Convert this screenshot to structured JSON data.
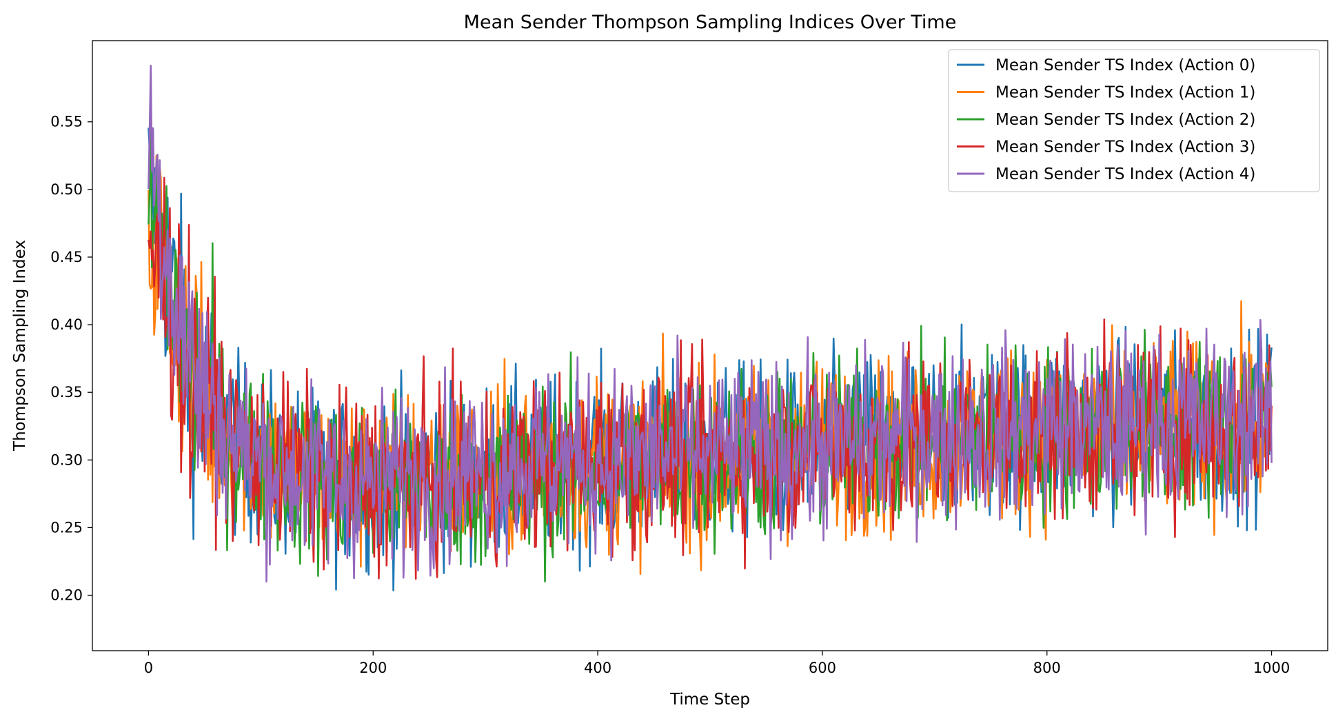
{
  "chart_data": {
    "type": "line",
    "title": "Mean Sender Thompson Sampling Indices Over Time",
    "xlabel": "Time Step",
    "ylabel": "Thompson Sampling Index",
    "xlim": [
      -50,
      1050
    ],
    "ylim": [
      0.159,
      0.61
    ],
    "xticks": [
      0,
      200,
      400,
      600,
      800,
      1000
    ],
    "yticks": [
      0.2,
      0.25,
      0.3,
      0.35,
      0.4,
      0.45,
      0.5,
      0.55
    ],
    "xtick_labels": [
      "0",
      "200",
      "400",
      "600",
      "800",
      "1000"
    ],
    "ytick_labels": [
      "0.20",
      "0.25",
      "0.30",
      "0.35",
      "0.40",
      "0.45",
      "0.50",
      "0.55"
    ],
    "grid": false,
    "legend_position": "top-right",
    "x": [
      0,
      10,
      20,
      30,
      40,
      50,
      60,
      80,
      100,
      130,
      160,
      200,
      250,
      300,
      350,
      400,
      450,
      500,
      550,
      600,
      650,
      700,
      750,
      800,
      850,
      900,
      950,
      1000
    ],
    "series": [
      {
        "name": "Mean Sender TS Index (Action 0)",
        "color": "#1f77b4",
        "values": [
          0.5,
          0.47,
          0.43,
          0.39,
          0.36,
          0.34,
          0.33,
          0.31,
          0.3,
          0.29,
          0.285,
          0.285,
          0.29,
          0.29,
          0.295,
          0.3,
          0.3,
          0.305,
          0.305,
          0.31,
          0.315,
          0.32,
          0.32,
          0.325,
          0.325,
          0.325,
          0.325,
          0.33
        ]
      },
      {
        "name": "Mean Sender TS Index (Action 1)",
        "color": "#ff7f0e",
        "values": [
          0.47,
          0.46,
          0.42,
          0.39,
          0.36,
          0.34,
          0.33,
          0.31,
          0.3,
          0.29,
          0.285,
          0.285,
          0.29,
          0.29,
          0.295,
          0.3,
          0.3,
          0.3,
          0.305,
          0.31,
          0.31,
          0.315,
          0.32,
          0.32,
          0.32,
          0.325,
          0.325,
          0.33
        ]
      },
      {
        "name": "Mean Sender TS Index (Action 2)",
        "color": "#2ca02c",
        "values": [
          0.49,
          0.47,
          0.43,
          0.39,
          0.36,
          0.34,
          0.33,
          0.31,
          0.3,
          0.29,
          0.28,
          0.28,
          0.285,
          0.285,
          0.29,
          0.295,
          0.3,
          0.3,
          0.305,
          0.31,
          0.315,
          0.315,
          0.32,
          0.32,
          0.325,
          0.325,
          0.325,
          0.33
        ]
      },
      {
        "name": "Mean Sender TS Index (Action 3)",
        "color": "#d62728",
        "values": [
          0.46,
          0.45,
          0.42,
          0.38,
          0.35,
          0.34,
          0.33,
          0.31,
          0.3,
          0.29,
          0.285,
          0.285,
          0.285,
          0.29,
          0.295,
          0.3,
          0.3,
          0.305,
          0.305,
          0.31,
          0.31,
          0.315,
          0.32,
          0.32,
          0.325,
          0.325,
          0.325,
          0.33
        ]
      },
      {
        "name": "Mean Sender TS Index (Action 4)",
        "color": "#9467bd",
        "values": [
          0.55,
          0.49,
          0.44,
          0.4,
          0.37,
          0.35,
          0.33,
          0.31,
          0.3,
          0.29,
          0.285,
          0.285,
          0.29,
          0.295,
          0.3,
          0.3,
          0.305,
          0.305,
          0.31,
          0.31,
          0.315,
          0.32,
          0.32,
          0.325,
          0.325,
          0.33,
          0.33,
          0.33
        ]
      }
    ]
  }
}
